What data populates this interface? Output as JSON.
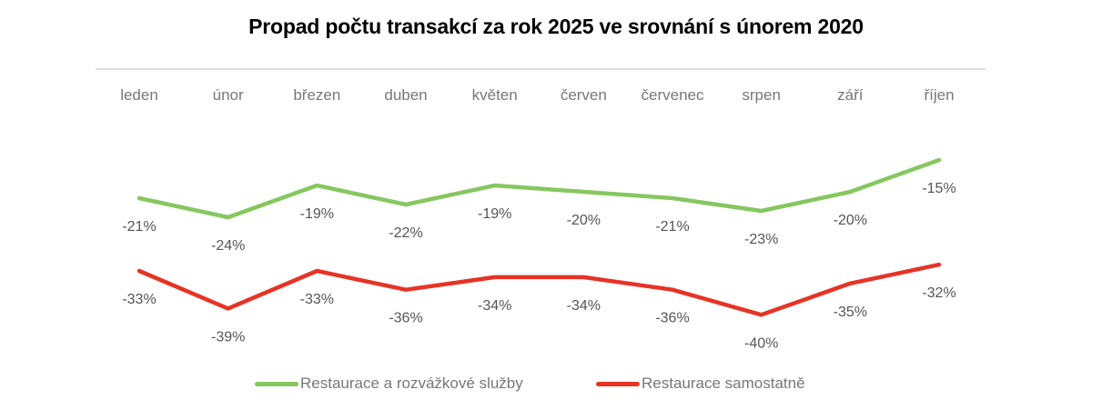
{
  "chart_data": {
    "type": "line",
    "title": "Propad počtu transakcí za rok 2025 ve srovnání s únorem 2020",
    "xlabel": "",
    "ylabel": "",
    "categories": [
      "leden",
      "únor",
      "březen",
      "duben",
      "květen",
      "červen",
      "červenec",
      "srpen",
      "září",
      "říjen"
    ],
    "series": [
      {
        "name": "Restaurace a rozvážkové služby",
        "color": "#86C75F",
        "values": [
          -21,
          -24,
          -19,
          -22,
          -19,
          -20,
          -21,
          -23,
          -20,
          -15
        ],
        "labels": [
          "-21%",
          "-24%",
          "-19%",
          "-22%",
          "-19%",
          "-20%",
          "-21%",
          "-23%",
          "-20%",
          "-15%"
        ]
      },
      {
        "name": "Restaurace samostatně",
        "color": "#E63325",
        "values": [
          -33,
          -39,
          -33,
          -36,
          -34,
          -34,
          -36,
          -40,
          -35,
          -32
        ],
        "labels": [
          "-33%",
          "-39%",
          "-33%",
          "-36%",
          "-34%",
          "-34%",
          "-36%",
          "-40%",
          "-35%",
          "-32%"
        ]
      }
    ],
    "axis_position": "top",
    "grid": false,
    "legend_position": "bottom",
    "unit": "%"
  }
}
